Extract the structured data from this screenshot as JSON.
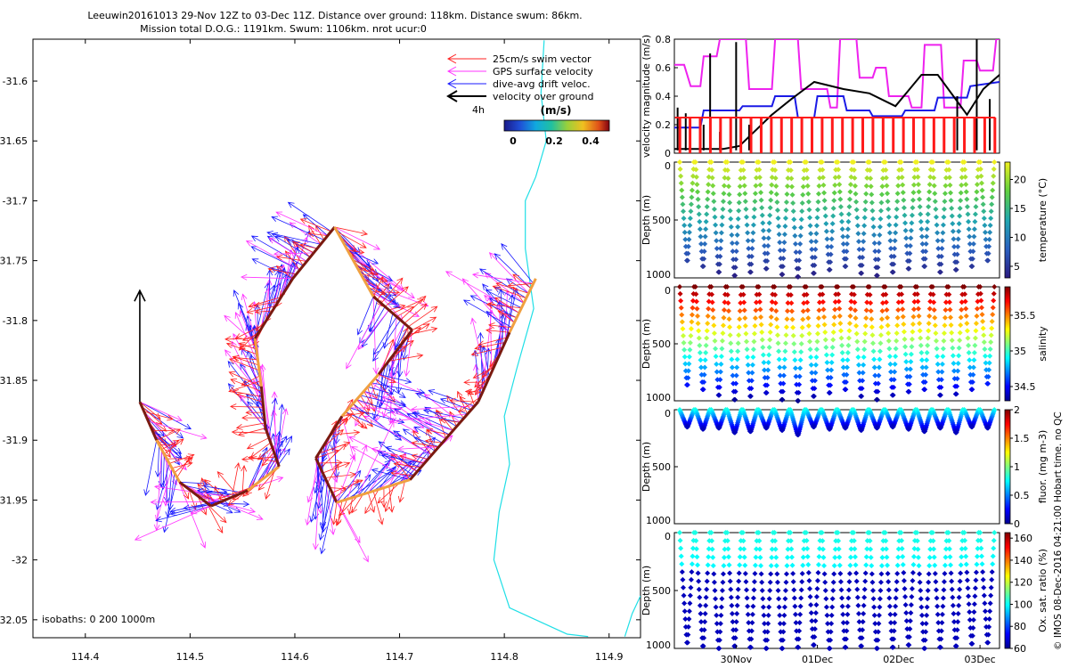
{
  "title_line1": "Leeuwin20161013 29-Nov 12Z to 03-Dec 11Z. Distance over ground: 118km. Distance swum: 86km.",
  "title_line2": "Mission total D.O.G.: 1191km. Swum: 1106km. nrot ucur:0",
  "side_note": "© IMOS 08-Dec-2016 04:21:00 Hobart time. no QC",
  "colors": {
    "swim": "#ff2020",
    "gps": "#ff33ff",
    "drift": "#1a1aff",
    "track_dark": "#7a1a10",
    "track_light": "#f0a040",
    "coast": "#1fdfe6",
    "vel_black": "#000000"
  },
  "chart_data": [
    {
      "type": "scatter",
      "panel": "map",
      "xlabel": "",
      "ylabel": "",
      "xlim": [
        114.35,
        114.93
      ],
      "ylim": [
        -32.065,
        -31.565
      ],
      "xticks": [
        "114.4",
        "114.5",
        "114.6",
        "114.7",
        "114.8",
        "114.9"
      ],
      "yticks": [
        "-31.6",
        "-31.65",
        "-31.7",
        "-31.75",
        "-31.8",
        "-31.85",
        "-31.9",
        "-31.95",
        "-32",
        "-32.05"
      ],
      "legend": {
        "placement": "top-right",
        "entries": [
          "25cm/s swim vector",
          "GPS surface velocity",
          "dive-avg drift veloc.",
          "velocity over ground"
        ],
        "scale_label": "4h"
      },
      "colorbar": {
        "label": "(m/s)",
        "ticks": [
          "0",
          "0.2",
          "0.4"
        ],
        "range": [
          0,
          0.5
        ]
      },
      "isobaths_label": "isobaths: 0   200   1000m",
      "track": [
        {
          "lon": 114.452,
          "lat": -31.868
        },
        {
          "lon": 114.468,
          "lat": -31.9
        },
        {
          "lon": 114.49,
          "lat": -31.935
        },
        {
          "lon": 114.52,
          "lat": -31.955
        },
        {
          "lon": 114.555,
          "lat": -31.942
        },
        {
          "lon": 114.585,
          "lat": -31.922
        },
        {
          "lon": 114.572,
          "lat": -31.89
        },
        {
          "lon": 114.568,
          "lat": -31.855
        },
        {
          "lon": 114.562,
          "lat": -31.815
        },
        {
          "lon": 114.598,
          "lat": -31.765
        },
        {
          "lon": 114.638,
          "lat": -31.722
        },
        {
          "lon": 114.675,
          "lat": -31.78
        },
        {
          "lon": 114.712,
          "lat": -31.808
        },
        {
          "lon": 114.68,
          "lat": -31.845
        },
        {
          "lon": 114.645,
          "lat": -31.88
        },
        {
          "lon": 114.62,
          "lat": -31.915
        },
        {
          "lon": 114.64,
          "lat": -31.952
        },
        {
          "lon": 114.71,
          "lat": -31.933
        },
        {
          "lon": 114.775,
          "lat": -31.868
        },
        {
          "lon": 114.805,
          "lat": -31.81
        },
        {
          "lon": 114.83,
          "lat": -31.765
        }
      ],
      "velocity_over_ground_arrow": {
        "lon": 114.452,
        "lat": -31.868,
        "dlat": 0.093
      },
      "coastline": [
        {
          "lon": 114.838,
          "lat": -31.566
        },
        {
          "lon": 114.835,
          "lat": -31.61
        },
        {
          "lon": 114.84,
          "lat": -31.65
        },
        {
          "lon": 114.83,
          "lat": -31.68
        },
        {
          "lon": 114.82,
          "lat": -31.7
        },
        {
          "lon": 114.82,
          "lat": -31.74
        },
        {
          "lon": 114.828,
          "lat": -31.79
        },
        {
          "lon": 114.812,
          "lat": -31.84
        },
        {
          "lon": 114.8,
          "lat": -31.88
        },
        {
          "lon": 114.805,
          "lat": -31.92
        },
        {
          "lon": 114.795,
          "lat": -31.96
        },
        {
          "lon": 114.79,
          "lat": -32.0
        },
        {
          "lon": 114.805,
          "lat": -32.04
        },
        {
          "lon": 114.86,
          "lat": -32.062
        },
        {
          "lon": 114.88,
          "lat": -32.064
        }
      ],
      "coastline_branch": [
        {
          "lon": 114.915,
          "lat": -32.064
        },
        {
          "lon": 114.922,
          "lat": -32.045
        },
        {
          "lon": 114.93,
          "lat": -32.03
        }
      ]
    },
    {
      "type": "line",
      "panel": "velocity",
      "ylabel": "velocity magnitude (m/s)",
      "ylim": [
        0,
        0.8
      ],
      "yticks": [
        "0",
        "0.2",
        "0.4",
        "0.6",
        "0.8"
      ],
      "time_range": [
        "29-Nov 12Z",
        "03-Dec 11Z"
      ],
      "series": [
        {
          "color": "magenta",
          "t": [
            0,
            0.03,
            0.05,
            0.08,
            0.09,
            0.13,
            0.14,
            0.22,
            0.23,
            0.3,
            0.31,
            0.38,
            0.39,
            0.47,
            0.48,
            0.5,
            0.51,
            0.56,
            0.57,
            0.61,
            0.62,
            0.65,
            0.66,
            0.72,
            0.73,
            0.76,
            0.77,
            0.82,
            0.83,
            0.88,
            0.89,
            0.93,
            0.94,
            0.98,
            0.99,
            1.0
          ],
          "values": [
            0.62,
            0.62,
            0.47,
            0.47,
            0.68,
            0.68,
            0.8,
            0.8,
            0.45,
            0.45,
            0.8,
            0.8,
            0.45,
            0.45,
            0.32,
            0.32,
            0.8,
            0.8,
            0.53,
            0.53,
            0.6,
            0.6,
            0.4,
            0.4,
            0.32,
            0.32,
            0.76,
            0.76,
            0.32,
            0.32,
            0.65,
            0.65,
            0.58,
            0.58,
            0.8,
            0.8
          ]
        },
        {
          "color": "blue",
          "t": [
            0,
            0.08,
            0.09,
            0.2,
            0.21,
            0.3,
            0.31,
            0.37,
            0.38,
            0.43,
            0.44,
            0.52,
            0.53,
            0.6,
            0.61,
            0.7,
            0.71,
            0.8,
            0.81,
            0.9,
            0.91,
            1.0
          ],
          "values": [
            0.18,
            0.18,
            0.3,
            0.3,
            0.33,
            0.33,
            0.4,
            0.4,
            0.25,
            0.25,
            0.4,
            0.4,
            0.3,
            0.3,
            0.26,
            0.26,
            0.3,
            0.3,
            0.39,
            0.39,
            0.47,
            0.5
          ]
        },
        {
          "color": "black",
          "t": [
            0,
            0.07,
            0.15,
            0.2,
            0.3,
            0.36,
            0.43,
            0.52,
            0.6,
            0.68,
            0.76,
            0.81,
            0.9,
            0.95,
            1.0
          ],
          "values": [
            0.03,
            0.03,
            0.03,
            0.05,
            0.27,
            0.38,
            0.5,
            0.45,
            0.42,
            0.33,
            0.55,
            0.55,
            0.27,
            0.45,
            0.55
          ],
          "spikes_t": [
            0.01,
            0.035,
            0.09,
            0.11,
            0.14,
            0.19,
            0.23,
            0.87,
            0.93,
            0.97
          ],
          "spike_values": [
            0.32,
            0.28,
            0.2,
            0.7,
            0.15,
            0.78,
            0.2,
            0.4,
            0.8,
            0.38
          ]
        },
        {
          "color": "red",
          "level": 0.25,
          "spike_count": 32
        }
      ]
    },
    {
      "type": "scatter",
      "panel": "temperature",
      "ylabel": "Depth (m)",
      "ylim": [
        1000,
        0
      ],
      "yticks": [
        "0",
        "500",
        "1000"
      ],
      "colorbar": {
        "label": "temperature (°C)",
        "ticks": [
          "5",
          "10",
          "15",
          "20"
        ],
        "range": [
          3,
          23
        ],
        "scheme": "viridis"
      },
      "profile": {
        "count": 20,
        "max_depth": [
          850,
          900,
          950,
          980,
          950,
          920,
          970,
          990,
          960,
          930,
          900,
          960,
          980,
          950,
          920,
          900,
          950,
          930,
          900,
          850
        ]
      }
    },
    {
      "type": "scatter",
      "panel": "salinity",
      "ylabel": "Depth (m)",
      "ylim": [
        1000,
        0
      ],
      "yticks": [
        "0",
        "500",
        "1000"
      ],
      "colorbar": {
        "label": "salinity",
        "ticks": [
          "34.5",
          "35",
          "35.5"
        ],
        "range": [
          34.3,
          35.9
        ],
        "scheme": "jet"
      },
      "profile": {
        "count": 20,
        "max_depth": [
          860,
          900,
          950,
          990,
          960,
          930,
          990,
          1000,
          960,
          930,
          900,
          960,
          990,
          950,
          920,
          900,
          950,
          940,
          900,
          850
        ]
      }
    },
    {
      "type": "scatter",
      "panel": "fluorescence",
      "ylabel": "Depth (m)",
      "ylim": [
        1000,
        0
      ],
      "yticks": [
        "0",
        "500",
        "1000"
      ],
      "colorbar": {
        "label": "fluor. (mg m-3)",
        "ticks": [
          "0",
          "0.5",
          "1",
          "1.5",
          "2"
        ],
        "range": [
          0,
          2
        ],
        "scheme": "jet"
      },
      "profile": {
        "count": 20,
        "max_depth": [
          150,
          170,
          160,
          200,
          190,
          160,
          180,
          220,
          150,
          170,
          160,
          180,
          160,
          150,
          170,
          190,
          160,
          200,
          150,
          160
        ]
      }
    },
    {
      "type": "scatter",
      "panel": "oxygen",
      "ylabel": "Depth (m)",
      "ylim": [
        1000,
        0
      ],
      "yticks": [
        "0",
        "500",
        "1000"
      ],
      "xticks": [
        "30Nov",
        "01Dec",
        "02Dec",
        "03Dec"
      ],
      "colorbar": {
        "label": "Ox. sat. ratio (%)",
        "ticks": [
          "60",
          "80",
          "100",
          "120",
          "140",
          "160"
        ],
        "range": [
          60,
          165
        ],
        "scheme": "jet"
      },
      "profile": {
        "count": 20,
        "max_depth": [
          950,
          980,
          1000,
          980,
          990,
          1000,
          1000,
          990,
          970,
          1000,
          990,
          980,
          1000,
          990,
          970,
          1000,
          990,
          980,
          960,
          950
        ]
      }
    }
  ]
}
